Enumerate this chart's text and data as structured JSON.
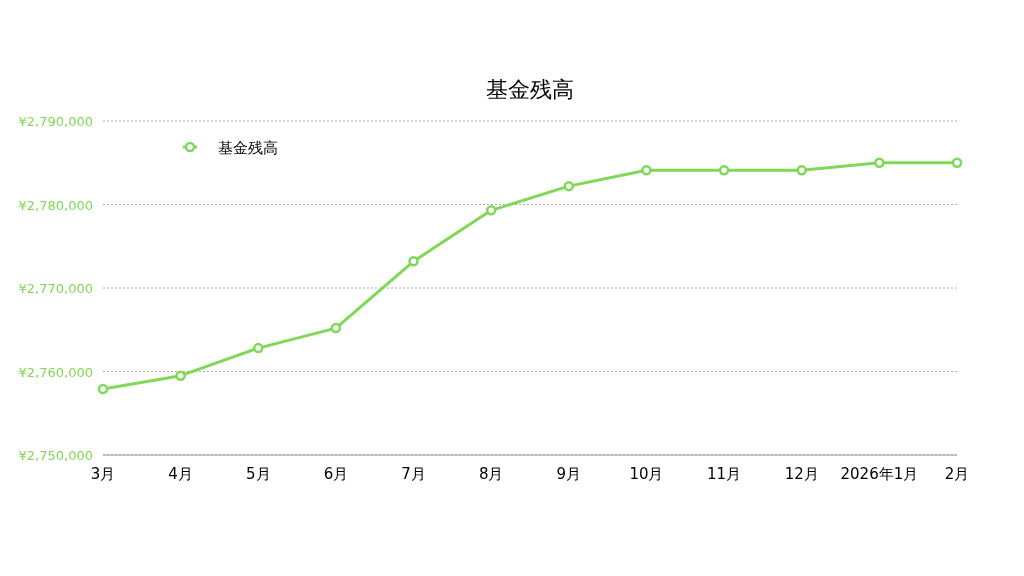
{
  "chart_data": {
    "type": "line",
    "title": "基金残高",
    "categories": [
      "3月",
      "4月",
      "5月",
      "6月",
      "7月",
      "8月",
      "9月",
      "10月",
      "11月",
      "12月",
      "2026年1月",
      "2月"
    ],
    "series": [
      {
        "name": "基金残高",
        "color": "#7fd858",
        "values": [
          2757900,
          2759500,
          2762800,
          2765200,
          2773200,
          2779300,
          2782200,
          2784100,
          2784100,
          2784100,
          2785000,
          2785000
        ]
      }
    ],
    "ylim": [
      2750000,
      2790000
    ],
    "yticks": [
      {
        "value": 2750000,
        "label": "¥2,750,000"
      },
      {
        "value": 2760000,
        "label": "¥2,760,000"
      },
      {
        "value": 2770000,
        "label": "¥2,770,000"
      },
      {
        "value": 2780000,
        "label": "¥2,780,000"
      },
      {
        "value": 2790000,
        "label": "¥2,790,000"
      }
    ],
    "grid": "y",
    "legend": "top left",
    "marker": "circle",
    "line_style": "solid"
  }
}
